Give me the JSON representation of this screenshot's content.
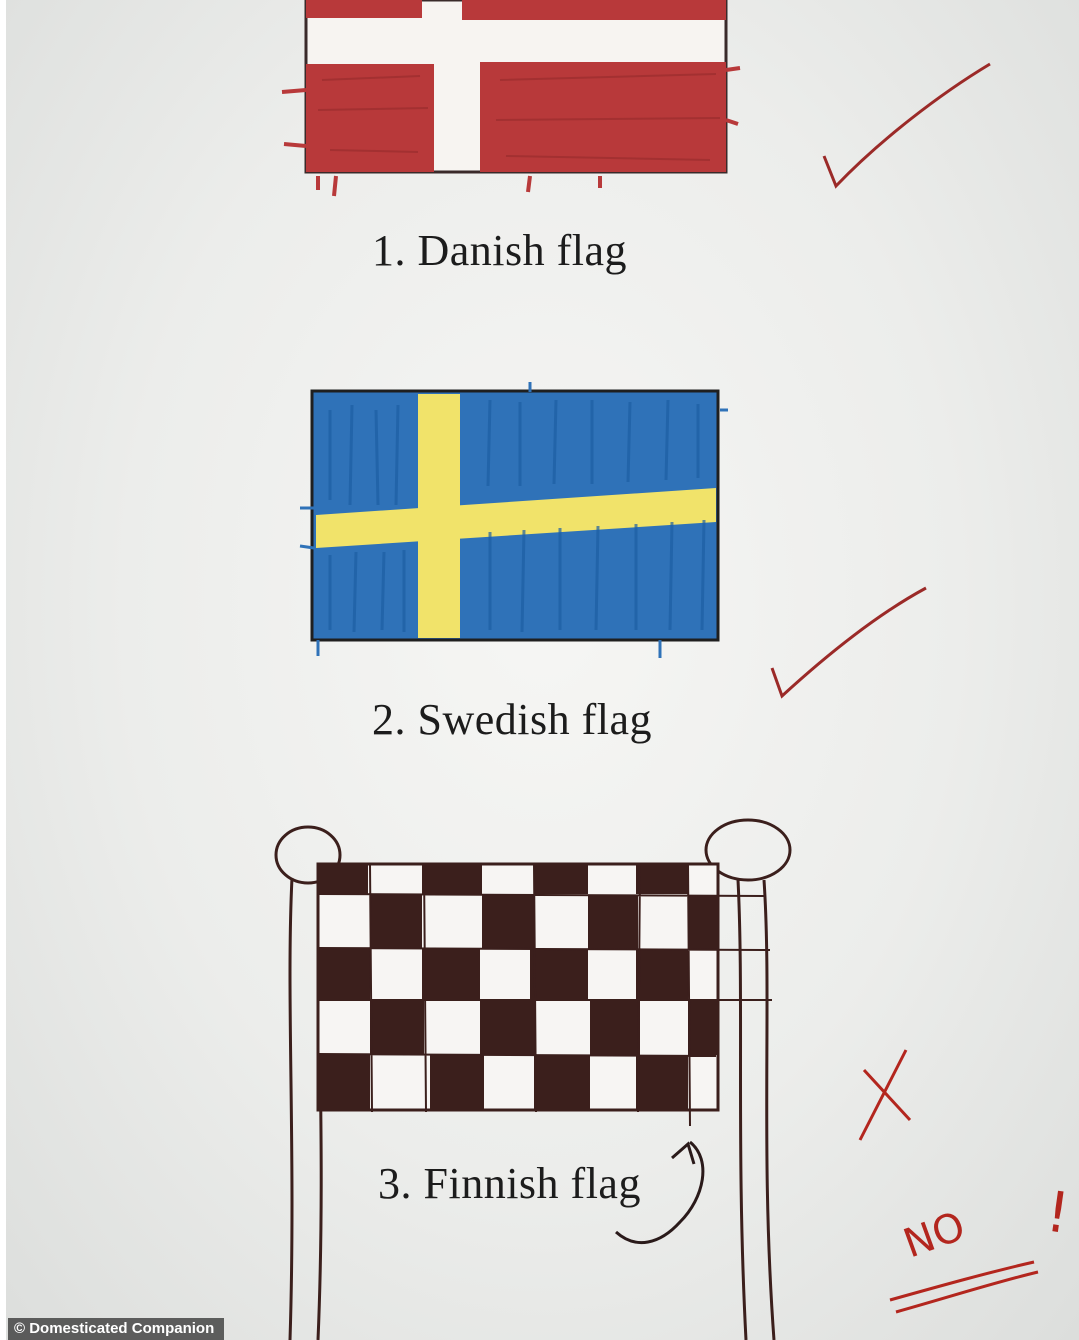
{
  "captions": {
    "danish": "1. Danish flag",
    "swedish": "2. Swedish flag",
    "finnish": "3. Finnish flag"
  },
  "teacher_marks": {
    "no_text": "NO",
    "exclamation": "!"
  },
  "credit": "© Domesticated Companion",
  "colors": {
    "danish_red": "#b8393a",
    "swedish_blue": "#2f72b8",
    "swedish_yellow": "#f1e36a",
    "marker_brown": "#3b1f1c",
    "teacher_red": "#b3261e"
  }
}
